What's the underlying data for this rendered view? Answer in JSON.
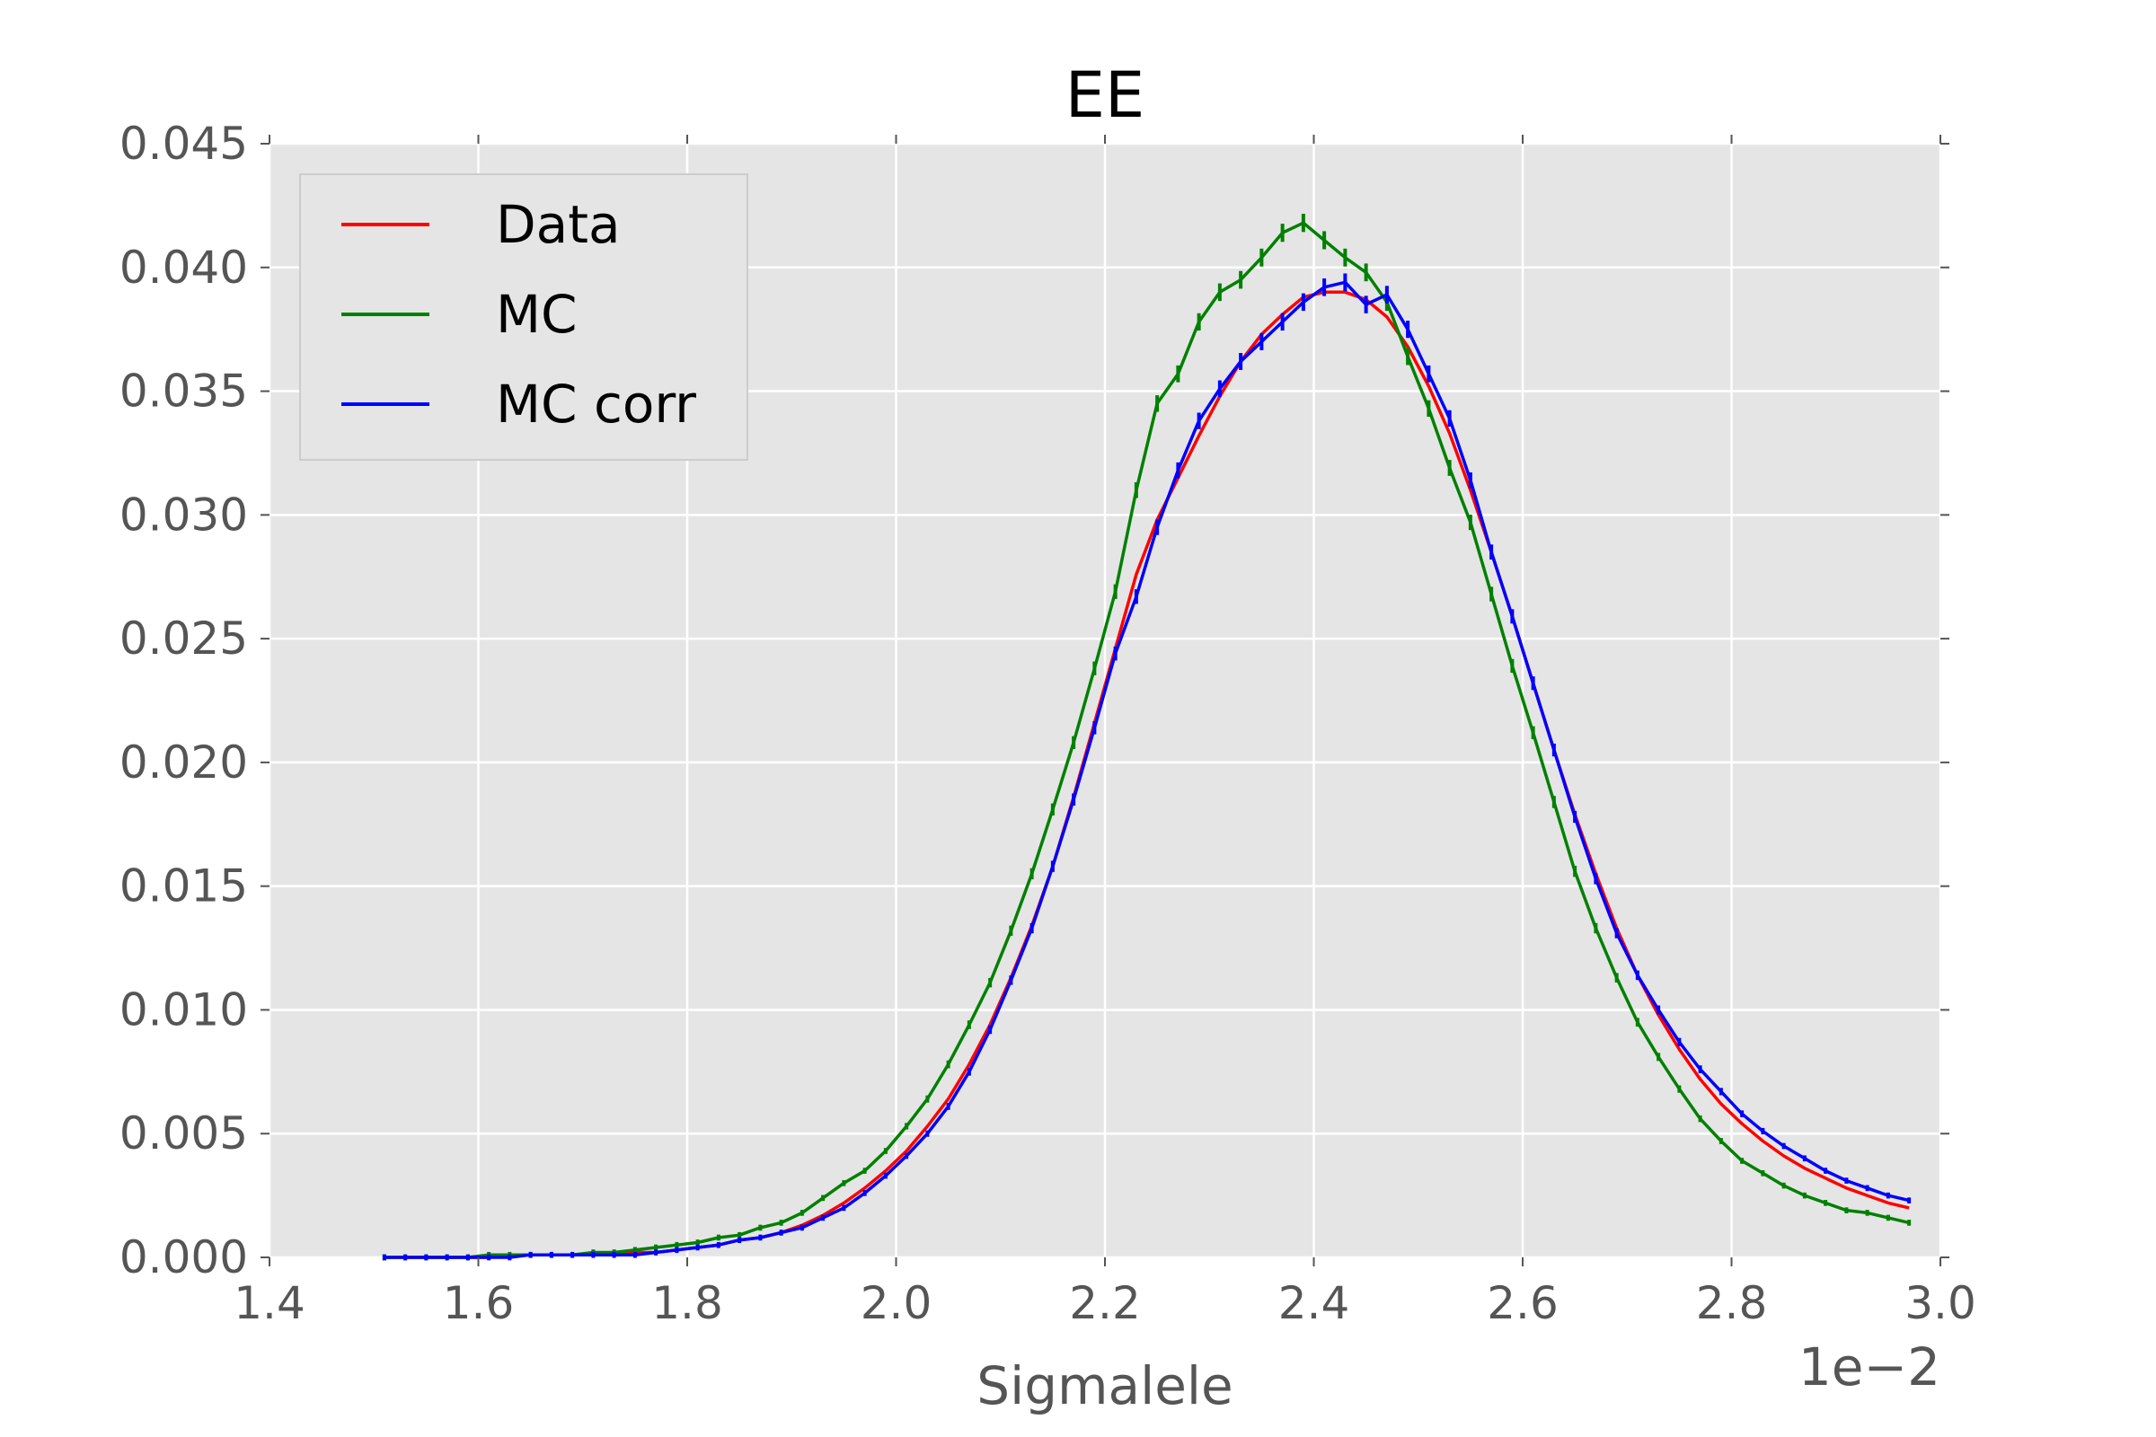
{
  "chart_data": {
    "type": "line",
    "title": "EE",
    "xlabel": "Sigmalele",
    "ylabel": "",
    "x_offset_text": "1e−2",
    "xlim": [
      1.4,
      3.0
    ],
    "ylim": [
      0.0,
      0.045
    ],
    "x_ticks": [
      1.4,
      1.6,
      1.8,
      2.0,
      2.2,
      2.4,
      2.6,
      2.8,
      3.0
    ],
    "x_tick_labels": [
      "1.4",
      "1.6",
      "1.8",
      "2.0",
      "2.2",
      "2.4",
      "2.6",
      "2.8",
      "3.0"
    ],
    "y_ticks": [
      0.0,
      0.005,
      0.01,
      0.015,
      0.02,
      0.025,
      0.03,
      0.035,
      0.04,
      0.045
    ],
    "y_tick_labels": [
      "0.000",
      "0.005",
      "0.010",
      "0.015",
      "0.020",
      "0.025",
      "0.030",
      "0.035",
      "0.040",
      "0.045"
    ],
    "grid": true,
    "legend_position": "top-left",
    "x": [
      1.51,
      1.53,
      1.55,
      1.57,
      1.59,
      1.61,
      1.63,
      1.65,
      1.67,
      1.69,
      1.71,
      1.73,
      1.75,
      1.77,
      1.79,
      1.81,
      1.83,
      1.85,
      1.87,
      1.89,
      1.91,
      1.93,
      1.95,
      1.97,
      1.99,
      2.01,
      2.03,
      2.05,
      2.07,
      2.09,
      2.11,
      2.13,
      2.15,
      2.17,
      2.19,
      2.21,
      2.23,
      2.25,
      2.27,
      2.29,
      2.31,
      2.33,
      2.35,
      2.37,
      2.39,
      2.41,
      2.43,
      2.45,
      2.47,
      2.49,
      2.51,
      2.53,
      2.55,
      2.57,
      2.59,
      2.61,
      2.63,
      2.65,
      2.67,
      2.69,
      2.71,
      2.73,
      2.75,
      2.77,
      2.79,
      2.81,
      2.83,
      2.85,
      2.87,
      2.89,
      2.91,
      2.93,
      2.95,
      2.97
    ],
    "series": [
      {
        "name": "Data",
        "color": "#ff0000",
        "values": [
          0.0,
          0.0,
          0.0,
          0.0,
          0.0,
          0.0,
          0.0001,
          0.0001,
          0.0001,
          0.0001,
          0.0001,
          0.0001,
          0.0002,
          0.0002,
          0.0003,
          0.0004,
          0.0005,
          0.0007,
          0.0008,
          0.001,
          0.0013,
          0.0017,
          0.0022,
          0.0028,
          0.0035,
          0.0043,
          0.0053,
          0.0064,
          0.0078,
          0.0094,
          0.0113,
          0.0134,
          0.0158,
          0.0186,
          0.0216,
          0.0246,
          0.0276,
          0.0298,
          0.0315,
          0.0332,
          0.0348,
          0.0362,
          0.0373,
          0.0381,
          0.0388,
          0.039,
          0.039,
          0.0387,
          0.038,
          0.0368,
          0.0352,
          0.0333,
          0.031,
          0.0285,
          0.0259,
          0.0232,
          0.0205,
          0.0179,
          0.0155,
          0.0133,
          0.0114,
          0.0098,
          0.0084,
          0.0072,
          0.0062,
          0.0054,
          0.0047,
          0.0041,
          0.0036,
          0.0032,
          0.0028,
          0.0025,
          0.0022,
          0.002
        ]
      },
      {
        "name": "MC",
        "color": "#008000",
        "values": [
          0.0,
          0.0,
          0.0,
          0.0,
          0.0,
          0.0001,
          0.0001,
          0.0001,
          0.0001,
          0.0001,
          0.0002,
          0.0002,
          0.0003,
          0.0004,
          0.0005,
          0.0006,
          0.0008,
          0.0009,
          0.0012,
          0.0014,
          0.0018,
          0.0024,
          0.003,
          0.0035,
          0.0043,
          0.0053,
          0.0064,
          0.0078,
          0.0094,
          0.0111,
          0.0132,
          0.0155,
          0.0181,
          0.0208,
          0.0238,
          0.0269,
          0.031,
          0.0345,
          0.0357,
          0.0378,
          0.039,
          0.0395,
          0.0404,
          0.0414,
          0.0418,
          0.0411,
          0.0404,
          0.0398,
          0.0386,
          0.0364,
          0.0343,
          0.0319,
          0.0297,
          0.0268,
          0.0239,
          0.0212,
          0.0184,
          0.0156,
          0.0133,
          0.0113,
          0.0095,
          0.0081,
          0.0068,
          0.0056,
          0.0047,
          0.0039,
          0.0034,
          0.0029,
          0.0025,
          0.0022,
          0.0019,
          0.0018,
          0.0016,
          0.0014
        ]
      },
      {
        "name": "MC corr",
        "color": "#0000ff",
        "values": [
          0.0,
          0.0,
          0.0,
          0.0,
          0.0,
          0.0,
          0.0,
          0.0001,
          0.0001,
          0.0001,
          0.0001,
          0.0001,
          0.0001,
          0.0002,
          0.0003,
          0.0004,
          0.0005,
          0.0007,
          0.0008,
          0.001,
          0.0012,
          0.0016,
          0.002,
          0.0026,
          0.0033,
          0.0041,
          0.005,
          0.0061,
          0.0075,
          0.0092,
          0.0112,
          0.0133,
          0.0158,
          0.0185,
          0.0214,
          0.0244,
          0.0267,
          0.0295,
          0.0318,
          0.0338,
          0.0351,
          0.0362,
          0.037,
          0.0378,
          0.0386,
          0.0392,
          0.0394,
          0.0385,
          0.0389,
          0.0375,
          0.0357,
          0.0339,
          0.0314,
          0.0285,
          0.0259,
          0.0232,
          0.0205,
          0.0178,
          0.0153,
          0.0131,
          0.0114,
          0.01,
          0.0087,
          0.0076,
          0.0067,
          0.0058,
          0.0051,
          0.0045,
          0.004,
          0.0035,
          0.0031,
          0.0028,
          0.0025,
          0.0023
        ]
      }
    ]
  }
}
